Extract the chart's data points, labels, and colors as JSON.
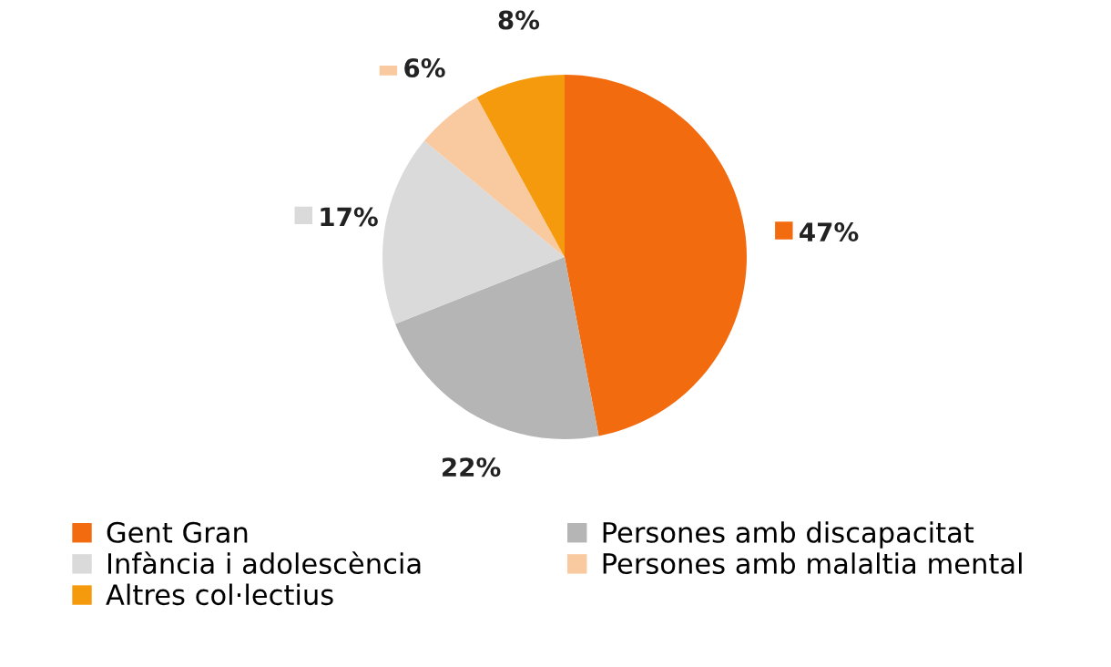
{
  "chart_data": {
    "type": "pie",
    "categories": [
      "Gent Gran",
      "Persones amb discapacitat",
      "Infància i adolescència",
      "Persones amb malaltia mental",
      "Altres col·lectius"
    ],
    "values": [
      47,
      22,
      17,
      6,
      8
    ],
    "colors": [
      "#f26b0f",
      "#b5b5b5",
      "#dadada",
      "#f9c9a0",
      "#f59a0c"
    ],
    "value_labels": [
      "47%",
      "22%",
      "17%",
      "6%",
      "8%"
    ],
    "legend": "bottom"
  }
}
